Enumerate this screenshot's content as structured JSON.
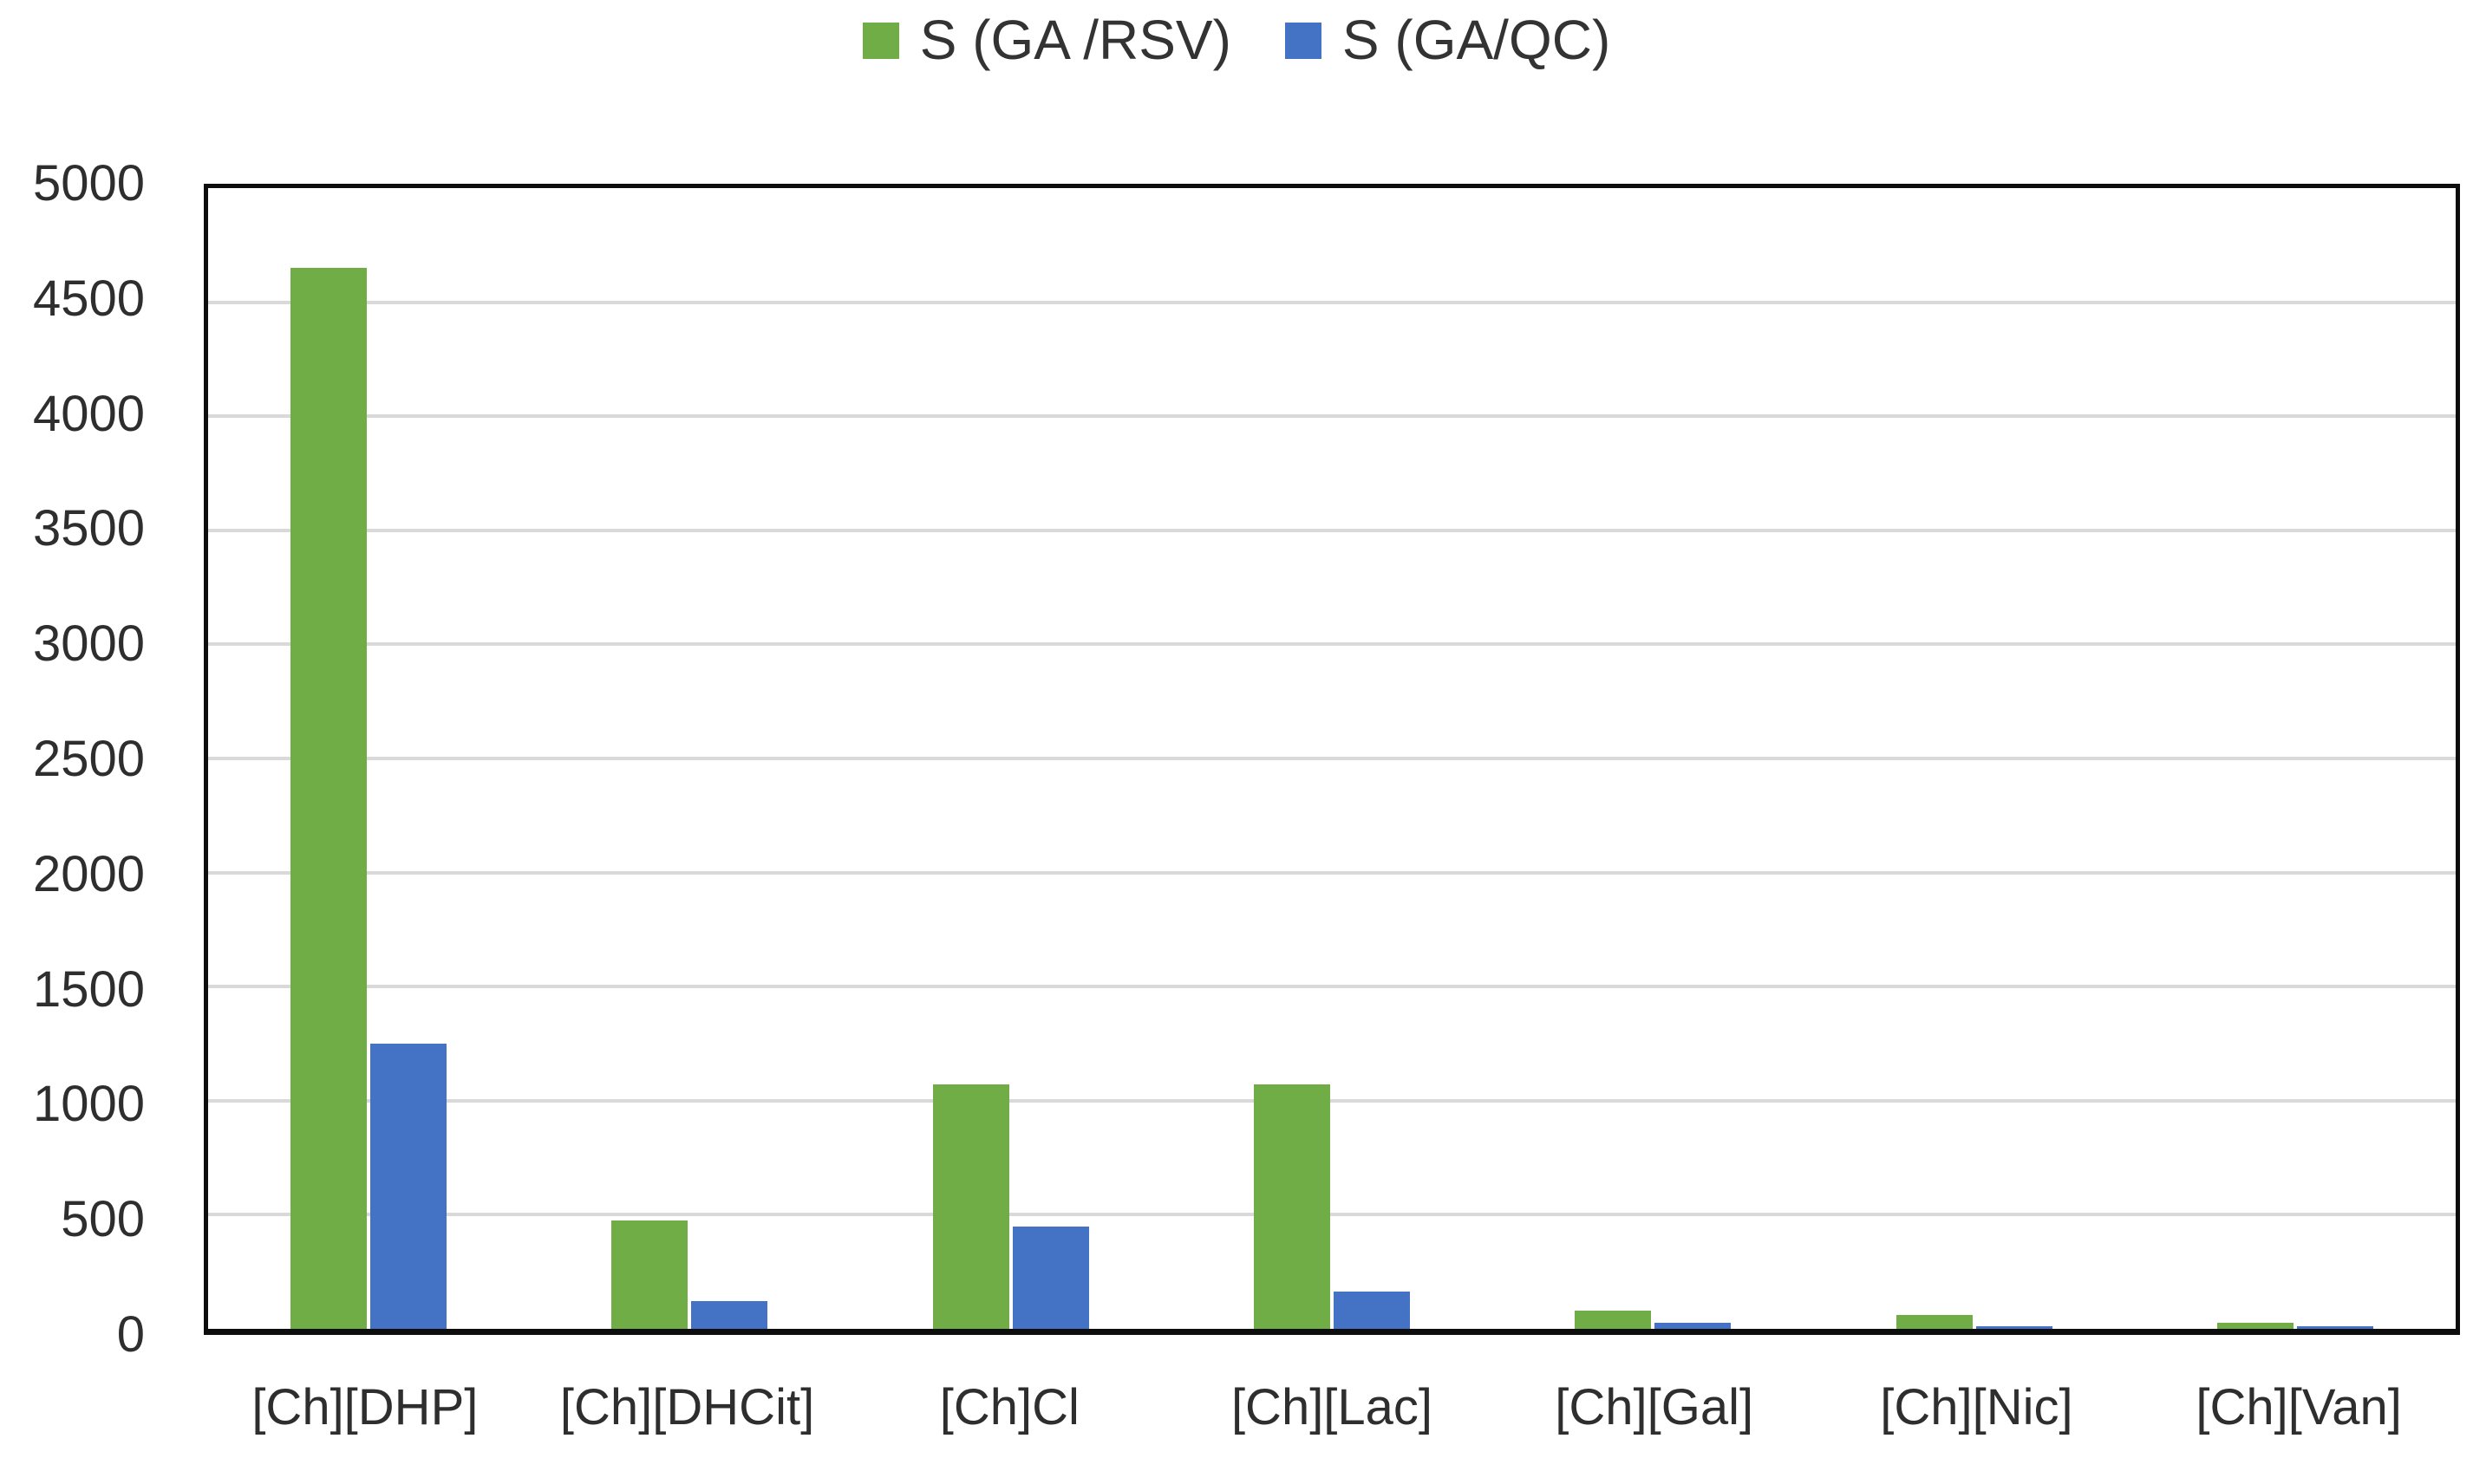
{
  "chart_data": {
    "type": "bar",
    "title": "",
    "categories": [
      "[Ch][DHP]",
      "[Ch][DHCit]",
      "[Ch]Cl",
      "[Ch][Lac]",
      "[Ch][Gal]",
      "[Ch][Nic]",
      "[Ch][Van]"
    ],
    "series": [
      {
        "name": "S (GA /RSV)",
        "color": "#70AD47",
        "values": [
          4650,
          475,
          1070,
          1070,
          80,
          60,
          25
        ]
      },
      {
        "name": "S (GA/QC)",
        "color": "#4472C4",
        "values": [
          1250,
          120,
          450,
          165,
          25,
          12,
          10
        ]
      }
    ],
    "ylim": [
      0,
      5000
    ],
    "yticks": [
      0,
      500,
      1000,
      1500,
      2000,
      2500,
      3000,
      3500,
      4000,
      4500,
      5000
    ],
    "grid": true,
    "legend_position": "top"
  },
  "colors": {
    "series_green": "#70AD47",
    "series_blue": "#4472C4",
    "gridline": "#d9d9d9",
    "axis_border": "#0d0d0d",
    "text": "#2e2e2e",
    "background": "#ffffff"
  }
}
